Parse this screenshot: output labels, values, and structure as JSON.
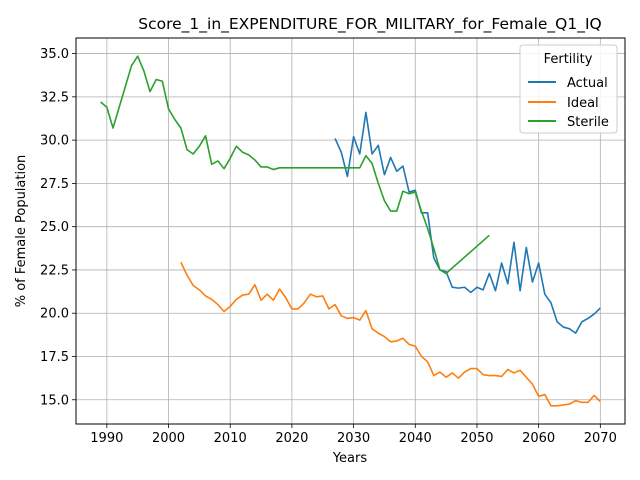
{
  "chart_data": {
    "type": "line",
    "title": "Score_1_in_EXPENDITURE_FOR_MILITARY_for_Female_Q1_IQ",
    "xlabel": "Years",
    "ylabel": "% of Female Population",
    "xlim": [
      1985,
      2074
    ],
    "ylim": [
      13.6,
      35.9
    ],
    "xticks": [
      1990,
      2000,
      2010,
      2020,
      2030,
      2040,
      2050,
      2060,
      2070
    ],
    "yticks": [
      15.0,
      17.5,
      20.0,
      22.5,
      25.0,
      27.5,
      30.0,
      32.5,
      35.0
    ],
    "xtick_labels": [
      "1990",
      "2000",
      "2010",
      "2020",
      "2030",
      "2040",
      "2050",
      "2060",
      "2070"
    ],
    "ytick_labels": [
      "15.0",
      "17.5",
      "20.0",
      "22.5",
      "25.0",
      "27.5",
      "30.0",
      "32.5",
      "35.0"
    ],
    "grid": true,
    "legend": {
      "title": "Fertility",
      "position": "top-right"
    },
    "series": [
      {
        "name": "Actual",
        "color": "#1f77b4",
        "x": [
          2027,
          2028,
          2029,
          2030,
          2031,
          2032,
          2033,
          2034,
          2035,
          2036,
          2037,
          2038,
          2039,
          2040,
          2041,
          2042,
          2043,
          2044,
          2045,
          2046,
          2047,
          2048,
          2049,
          2050,
          2051,
          2052,
          2053,
          2054,
          2055,
          2056,
          2057,
          2058,
          2059,
          2060,
          2061,
          2062,
          2063,
          2064,
          2065,
          2066,
          2067,
          2068,
          2069,
          2070
        ],
        "y": [
          30.1,
          29.3,
          27.9,
          30.2,
          29.2,
          31.6,
          29.2,
          29.7,
          28.0,
          29.0,
          28.2,
          28.5,
          27.0,
          27.1,
          25.8,
          25.8,
          23.2,
          22.5,
          22.4,
          21.5,
          21.45,
          21.5,
          21.2,
          21.5,
          21.35,
          22.3,
          21.3,
          22.9,
          21.7,
          24.1,
          21.3,
          23.8,
          21.8,
          22.9,
          21.1,
          20.6,
          19.5,
          19.2,
          19.1,
          18.85,
          19.5,
          19.7,
          19.95,
          20.3
        ]
      },
      {
        "name": "Ideal",
        "color": "#ff7f0e",
        "x": [
          2002,
          2003,
          2004,
          2005,
          2006,
          2007,
          2008,
          2009,
          2010,
          2011,
          2012,
          2013,
          2014,
          2015,
          2016,
          2017,
          2018,
          2019,
          2020,
          2021,
          2022,
          2023,
          2024,
          2025,
          2026,
          2027,
          2028,
          2029,
          2030,
          2031,
          2032,
          2033,
          2034,
          2035,
          2036,
          2037,
          2038,
          2039,
          2040,
          2041,
          2042,
          2043,
          2044,
          2045,
          2046,
          2047,
          2048,
          2049,
          2050,
          2051,
          2052,
          2053,
          2054,
          2055,
          2056,
          2057,
          2058,
          2059,
          2060,
          2061,
          2062,
          2063,
          2064,
          2065,
          2066,
          2067,
          2068,
          2069,
          2070
        ],
        "y": [
          22.95,
          22.2,
          21.6,
          21.35,
          21.0,
          20.8,
          20.5,
          20.1,
          20.4,
          20.8,
          21.05,
          21.1,
          21.65,
          20.75,
          21.1,
          20.75,
          21.4,
          20.9,
          20.25,
          20.25,
          20.6,
          21.1,
          20.95,
          21.0,
          20.25,
          20.5,
          19.85,
          19.7,
          19.75,
          19.6,
          20.15,
          19.1,
          18.85,
          18.65,
          18.35,
          18.4,
          18.55,
          18.2,
          18.1,
          17.5,
          17.2,
          16.4,
          16.6,
          16.3,
          16.55,
          16.25,
          16.6,
          16.8,
          16.8,
          16.45,
          16.4,
          16.4,
          16.35,
          16.75,
          16.55,
          16.7,
          16.3,
          15.9,
          15.2,
          15.3,
          14.65,
          14.65,
          14.7,
          14.75,
          14.95,
          14.85,
          14.85,
          15.25,
          14.9
        ]
      },
      {
        "name": "Sterile",
        "color": "#2ca02c",
        "x": [
          1989,
          1990,
          1991,
          1992,
          1993,
          1994,
          1995,
          1996,
          1997,
          1998,
          1999,
          2000,
          2001,
          2002,
          2003,
          2004,
          2005,
          2006,
          2007,
          2008,
          2009,
          2010,
          2011,
          2012,
          2013,
          2014,
          2015,
          2016,
          2017,
          2018,
          2019,
          2020,
          2021,
          2022,
          2023,
          2024,
          2025,
          2026,
          2027,
          2028,
          2029,
          2030,
          2031,
          2032,
          2033,
          2034,
          2035,
          2036,
          2037,
          2038,
          2039,
          2040,
          2041,
          2042,
          2043,
          2044,
          2045,
          2052
        ],
        "y": [
          32.2,
          31.9,
          30.7,
          31.9,
          33.1,
          34.3,
          34.85,
          34.0,
          32.8,
          33.5,
          33.4,
          31.8,
          31.2,
          30.7,
          29.45,
          29.2,
          29.65,
          30.25,
          28.6,
          28.8,
          28.35,
          28.95,
          29.65,
          29.3,
          29.15,
          28.85,
          28.45,
          28.45,
          28.3,
          28.4,
          28.4,
          28.4,
          28.4,
          28.4,
          28.4,
          28.4,
          28.4,
          28.4,
          28.4,
          28.4,
          28.4,
          28.4,
          28.4,
          29.1,
          28.65,
          27.5,
          26.5,
          25.9,
          25.9,
          27.05,
          26.9,
          27.0,
          25.9,
          24.9,
          23.75,
          22.5,
          22.3,
          24.5
        ]
      }
    ]
  }
}
